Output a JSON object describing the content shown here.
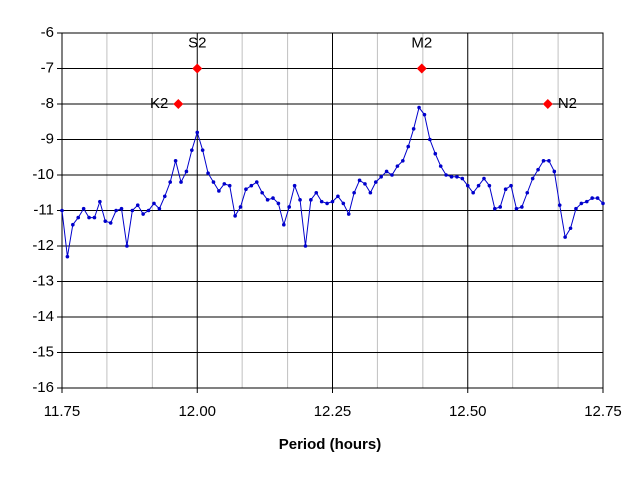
{
  "chart_data": {
    "type": "line",
    "xlabel": "Period (hours)",
    "xlim": [
      11.75,
      12.75
    ],
    "ylim": [
      -16,
      -6
    ],
    "xticks": [
      {
        "value": 11.75,
        "label": "11.75"
      },
      {
        "value": 12.0,
        "label": "12.00"
      },
      {
        "value": 12.25,
        "label": "12.25"
      },
      {
        "value": 12.5,
        "label": "12.50"
      },
      {
        "value": 12.75,
        "label": "12.75"
      }
    ],
    "xminorticks": [
      11.833,
      11.917,
      12.083,
      12.167,
      12.333,
      12.417,
      12.583,
      12.667
    ],
    "yticks": [
      -6,
      -7,
      -8,
      -9,
      -10,
      -11,
      -12,
      -13,
      -14,
      -15,
      -16
    ],
    "grid": true,
    "series": [
      {
        "color": "#0000cc",
        "x": [
          11.75,
          11.76,
          11.77,
          11.78,
          11.79,
          11.8,
          11.81,
          11.82,
          11.83,
          11.84,
          11.85,
          11.86,
          11.87,
          11.88,
          11.89,
          11.9,
          11.91,
          11.92,
          11.93,
          11.94,
          11.95,
          11.96,
          11.97,
          11.98,
          11.99,
          12.0,
          12.01,
          12.02,
          12.03,
          12.04,
          12.05,
          12.06,
          12.07,
          12.08,
          12.09,
          12.1,
          12.11,
          12.12,
          12.13,
          12.14,
          12.15,
          12.16,
          12.17,
          12.18,
          12.19,
          12.2,
          12.21,
          12.22,
          12.23,
          12.24,
          12.25,
          12.26,
          12.27,
          12.28,
          12.29,
          12.3,
          12.31,
          12.32,
          12.33,
          12.34,
          12.35,
          12.36,
          12.37,
          12.38,
          12.39,
          12.4,
          12.41,
          12.42,
          12.43,
          12.44,
          12.45,
          12.46,
          12.47,
          12.48,
          12.49,
          12.5,
          12.51,
          12.52,
          12.53,
          12.54,
          12.55,
          12.56,
          12.57,
          12.58,
          12.59,
          12.6,
          12.61,
          12.62,
          12.63,
          12.64,
          12.65,
          12.66,
          12.67,
          12.68,
          12.69,
          12.7,
          12.71,
          12.72,
          12.73,
          12.74,
          12.75
        ],
        "values": [
          -11.0,
          -12.3,
          -11.4,
          -11.2,
          -10.95,
          -11.2,
          -11.2,
          -10.75,
          -11.3,
          -11.35,
          -11.0,
          -10.95,
          -12.0,
          -11.0,
          -10.85,
          -11.1,
          -11.0,
          -10.8,
          -10.95,
          -10.6,
          -10.2,
          -9.6,
          -10.2,
          -9.9,
          -9.3,
          -8.8,
          -9.3,
          -9.95,
          -10.2,
          -10.45,
          -10.25,
          -10.3,
          -11.15,
          -10.9,
          -10.4,
          -10.3,
          -10.2,
          -10.5,
          -10.7,
          -10.65,
          -10.8,
          -11.4,
          -10.9,
          -10.3,
          -10.7,
          -12.0,
          -10.7,
          -10.5,
          -10.75,
          -10.8,
          -10.75,
          -10.6,
          -10.8,
          -11.1,
          -10.5,
          -10.15,
          -10.25,
          -10.5,
          -10.2,
          -10.05,
          -9.9,
          -10.0,
          -9.75,
          -9.6,
          -9.2,
          -8.7,
          -8.1,
          -8.3,
          -9.0,
          -9.4,
          -9.75,
          -10.0,
          -10.05,
          -10.05,
          -10.1,
          -10.3,
          -10.5,
          -10.3,
          -10.1,
          -10.3,
          -10.95,
          -10.9,
          -10.4,
          -10.3,
          -10.95,
          -10.9,
          -10.5,
          -10.1,
          -9.85,
          -9.6,
          -9.6,
          -9.9,
          -10.85,
          -11.75,
          -11.5,
          -10.95,
          -10.8,
          -10.75,
          -10.65,
          -10.65,
          -10.8
        ]
      }
    ],
    "points": [
      {
        "label": "K2",
        "x": 11.965,
        "y": -8,
        "label_side": "left",
        "color": "#ff0000"
      },
      {
        "label": "S2",
        "x": 12.0,
        "y": -7,
        "label_side": "above",
        "color": "#ff0000"
      },
      {
        "label": "M2",
        "x": 12.415,
        "y": -7,
        "label_side": "above",
        "color": "#ff0000"
      },
      {
        "label": "N2",
        "x": 12.648,
        "y": -8,
        "label_side": "right",
        "color": "#ff0000"
      }
    ]
  }
}
